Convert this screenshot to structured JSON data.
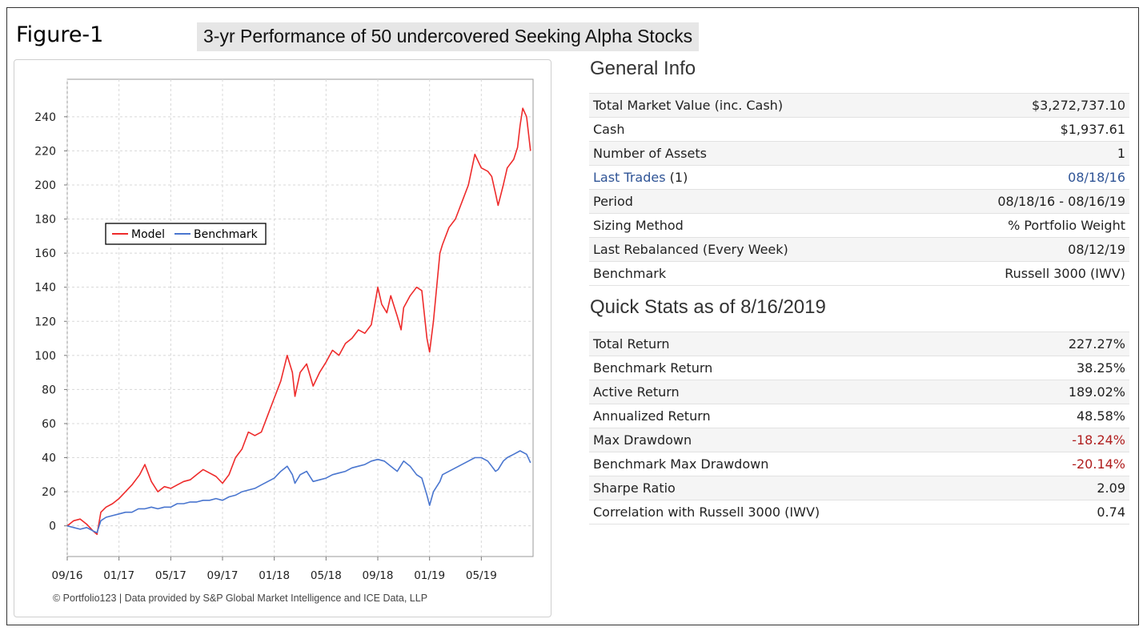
{
  "figure_label": "Figure-1",
  "figure_title": "3-yr Performance of 50 undercovered Seeking Alpha Stocks",
  "credit": "© Portfolio123 | Data provided by S&P Global Market Intelligence and ICE Data, LLP",
  "general_info": {
    "title": "General Info",
    "rows": [
      {
        "label": "Total Market Value (inc. Cash)",
        "value": "$3,272,737.10"
      },
      {
        "label": "Cash",
        "value": "$1,937.61"
      },
      {
        "label": "Number of Assets",
        "value": "1"
      },
      {
        "label": "Last Trades",
        "label_suffix": " (1)",
        "value": "08/18/16",
        "link": true
      },
      {
        "label": "Period",
        "value": "08/18/16 - 08/16/19"
      },
      {
        "label": "Sizing Method",
        "value": "% Portfolio Weight"
      },
      {
        "label": "Last Rebalanced (Every Week)",
        "value": "08/12/19"
      },
      {
        "label": "Benchmark",
        "value": "Russell 3000 (IWV)"
      }
    ]
  },
  "quick_stats": {
    "title": "Quick Stats as of 8/16/2019",
    "rows": [
      {
        "label": "Total Return",
        "value": "227.27%"
      },
      {
        "label": "Benchmark Return",
        "value": "38.25%"
      },
      {
        "label": "Active Return",
        "value": "189.02%"
      },
      {
        "label": "Annualized Return",
        "value": "48.58%"
      },
      {
        "label": "Max Drawdown",
        "value": "-18.24%",
        "negative": true
      },
      {
        "label": "Benchmark Max Drawdown",
        "value": "-20.14%",
        "negative": true
      },
      {
        "label": "Sharpe Ratio",
        "value": "2.09"
      },
      {
        "label": "Correlation with Russell 3000 (IWV)",
        "value": "0.74"
      }
    ]
  },
  "colors": {
    "model": "#ee2b2b",
    "benchmark": "#4a76cf",
    "link": "#2f5496",
    "negative": "#b01e1e"
  },
  "chart_data": {
    "type": "line",
    "xlabel": "",
    "ylabel": "",
    "xlim": [
      0,
      36
    ],
    "ylim": [
      -18,
      262
    ],
    "yticks": [
      0,
      20,
      40,
      60,
      80,
      100,
      120,
      140,
      160,
      180,
      200,
      220,
      240
    ],
    "xticks": [
      {
        "x": 0,
        "label": "09/16"
      },
      {
        "x": 4,
        "label": "01/17"
      },
      {
        "x": 8,
        "label": "05/17"
      },
      {
        "x": 12,
        "label": "09/17"
      },
      {
        "x": 16,
        "label": "01/18"
      },
      {
        "x": 20,
        "label": "05/18"
      },
      {
        "x": 24,
        "label": "09/18"
      },
      {
        "x": 28,
        "label": "01/19"
      },
      {
        "x": 32,
        "label": "05/19"
      }
    ],
    "grid": true,
    "legend_position": "middle-left",
    "series": [
      {
        "name": "Model",
        "points": [
          [
            0,
            0
          ],
          [
            0.5,
            3
          ],
          [
            1,
            4
          ],
          [
            1.5,
            1
          ],
          [
            2,
            -3
          ],
          [
            2.3,
            -5
          ],
          [
            2.6,
            8
          ],
          [
            3,
            11
          ],
          [
            3.5,
            13
          ],
          [
            4,
            16
          ],
          [
            4.5,
            20
          ],
          [
            5,
            24
          ],
          [
            5.6,
            30
          ],
          [
            6,
            36
          ],
          [
            6.5,
            26
          ],
          [
            7,
            20
          ],
          [
            7.5,
            23
          ],
          [
            8,
            22
          ],
          [
            8.5,
            24
          ],
          [
            9,
            26
          ],
          [
            9.5,
            27
          ],
          [
            10,
            30
          ],
          [
            10.5,
            33
          ],
          [
            11,
            31
          ],
          [
            11.5,
            29
          ],
          [
            12,
            25
          ],
          [
            12.5,
            30
          ],
          [
            13,
            40
          ],
          [
            13.5,
            45
          ],
          [
            14,
            55
          ],
          [
            14.5,
            53
          ],
          [
            15,
            55
          ],
          [
            15.5,
            65
          ],
          [
            16,
            75
          ],
          [
            16.5,
            85
          ],
          [
            17,
            100
          ],
          [
            17.4,
            90
          ],
          [
            17.6,
            76
          ],
          [
            18,
            90
          ],
          [
            18.5,
            95
          ],
          [
            19,
            82
          ],
          [
            19.5,
            90
          ],
          [
            20,
            96
          ],
          [
            20.5,
            103
          ],
          [
            21,
            100
          ],
          [
            21.5,
            107
          ],
          [
            22,
            110
          ],
          [
            22.5,
            115
          ],
          [
            23,
            113
          ],
          [
            23.5,
            118
          ],
          [
            24,
            140
          ],
          [
            24.3,
            130
          ],
          [
            24.7,
            125
          ],
          [
            25,
            135
          ],
          [
            25.5,
            123
          ],
          [
            25.8,
            115
          ],
          [
            26,
            128
          ],
          [
            26.5,
            135
          ],
          [
            27,
            140
          ],
          [
            27.4,
            138
          ],
          [
            27.8,
            110
          ],
          [
            28,
            102
          ],
          [
            28.3,
            120
          ],
          [
            28.8,
            160
          ],
          [
            29,
            165
          ],
          [
            29.5,
            175
          ],
          [
            30,
            180
          ],
          [
            30.5,
            190
          ],
          [
            31,
            200
          ],
          [
            31.5,
            218
          ],
          [
            32,
            210
          ],
          [
            32.5,
            208
          ],
          [
            32.8,
            205
          ],
          [
            33.1,
            195
          ],
          [
            33.3,
            188
          ],
          [
            33.7,
            200
          ],
          [
            34,
            210
          ],
          [
            34.5,
            215
          ],
          [
            34.8,
            222
          ],
          [
            35,
            235
          ],
          [
            35.2,
            245
          ],
          [
            35.5,
            240
          ],
          [
            35.8,
            220
          ]
        ]
      },
      {
        "name": "Benchmark",
        "points": [
          [
            0,
            0
          ],
          [
            0.5,
            -1
          ],
          [
            1,
            -2
          ],
          [
            1.5,
            -1
          ],
          [
            2,
            -3
          ],
          [
            2.3,
            -4
          ],
          [
            2.6,
            3
          ],
          [
            3,
            5
          ],
          [
            3.5,
            6
          ],
          [
            4,
            7
          ],
          [
            4.5,
            8
          ],
          [
            5,
            8
          ],
          [
            5.5,
            10
          ],
          [
            6,
            10
          ],
          [
            6.5,
            11
          ],
          [
            7,
            10
          ],
          [
            7.5,
            11
          ],
          [
            8,
            11
          ],
          [
            8.5,
            13
          ],
          [
            9,
            13
          ],
          [
            9.5,
            14
          ],
          [
            10,
            14
          ],
          [
            10.5,
            15
          ],
          [
            11,
            15
          ],
          [
            11.5,
            16
          ],
          [
            12,
            15
          ],
          [
            12.5,
            17
          ],
          [
            13,
            18
          ],
          [
            13.5,
            20
          ],
          [
            14,
            21
          ],
          [
            14.5,
            22
          ],
          [
            15,
            24
          ],
          [
            15.5,
            26
          ],
          [
            16,
            28
          ],
          [
            16.5,
            32
          ],
          [
            17,
            35
          ],
          [
            17.4,
            30
          ],
          [
            17.6,
            25
          ],
          [
            18,
            30
          ],
          [
            18.5,
            32
          ],
          [
            19,
            26
          ],
          [
            19.5,
            27
          ],
          [
            20,
            28
          ],
          [
            20.5,
            30
          ],
          [
            21,
            31
          ],
          [
            21.5,
            32
          ],
          [
            22,
            34
          ],
          [
            22.5,
            35
          ],
          [
            23,
            36
          ],
          [
            23.5,
            38
          ],
          [
            24,
            39
          ],
          [
            24.5,
            38
          ],
          [
            25,
            35
          ],
          [
            25.5,
            32
          ],
          [
            26,
            38
          ],
          [
            26.5,
            35
          ],
          [
            27,
            30
          ],
          [
            27.4,
            28
          ],
          [
            27.8,
            18
          ],
          [
            28,
            12
          ],
          [
            28.3,
            20
          ],
          [
            28.8,
            26
          ],
          [
            29,
            30
          ],
          [
            29.5,
            32
          ],
          [
            30,
            34
          ],
          [
            30.5,
            36
          ],
          [
            31,
            38
          ],
          [
            31.5,
            40
          ],
          [
            32,
            40
          ],
          [
            32.5,
            38
          ],
          [
            32.8,
            35
          ],
          [
            33.1,
            32
          ],
          [
            33.3,
            33
          ],
          [
            33.7,
            38
          ],
          [
            34,
            40
          ],
          [
            34.5,
            42
          ],
          [
            35,
            44
          ],
          [
            35.5,
            42
          ],
          [
            35.8,
            37
          ]
        ]
      }
    ]
  }
}
